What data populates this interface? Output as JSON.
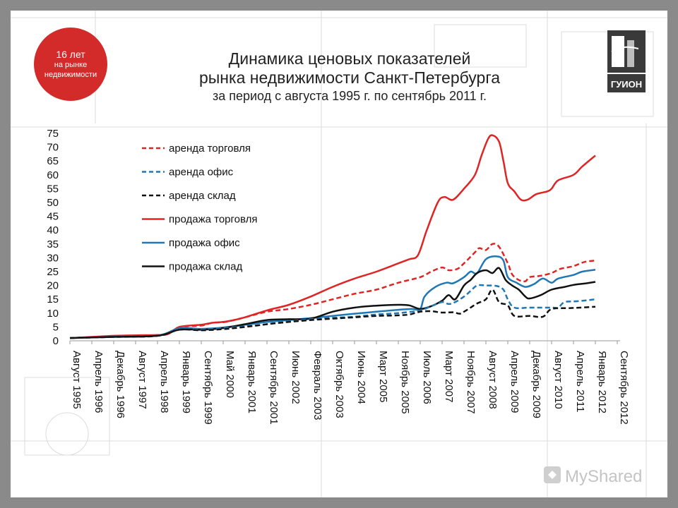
{
  "header": {
    "title_line1": "Динамика ценовых показателей",
    "title_line2": "рынка недвижимости Санкт-Петербурга",
    "title_line3": "за период с августа 1995 г.  по сентябрь 2011 г."
  },
  "badge": {
    "line1": "16 лет",
    "line2": "на рынке",
    "line3": "недвижимости"
  },
  "logo": {
    "text": "ГУИОН"
  },
  "watermark": {
    "text": "MyShared"
  },
  "colors": {
    "red": "#e02424",
    "blue": "#1f78b4",
    "black": "#111111",
    "badge": "#d32a2a"
  },
  "chart_data": {
    "type": "line",
    "ylim": [
      0,
      75
    ],
    "y_ticks": [
      0,
      5,
      10,
      15,
      20,
      25,
      30,
      35,
      40,
      45,
      50,
      55,
      60,
      65,
      70,
      75
    ],
    "x_tick_labels": [
      "Август 1995",
      "Апрель 1996",
      "Декабрь 1996",
      "Август 1997",
      "Апрель 1998",
      "Январь 1999",
      "Сентябрь 1999",
      "Май 2000",
      "Январь 2001",
      "Сентябрь 2001",
      "Июнь 2002",
      "Февраль 2003",
      "Октябрь 2003",
      "Июнь 2004",
      "Март 2005",
      "Ноябрь 2005",
      "Июль 2006",
      "Март 2007",
      "Ноябрь 2007",
      "Август 2008",
      "Апрель 2009",
      "Декабрь 2009",
      "Август 2010",
      "Апрель 2011",
      "Январь 2012",
      "Сентябрь 2012"
    ],
    "legend_position": "top-left",
    "grid": false,
    "series": [
      {
        "name": "аренда торговля",
        "color": "#e02424",
        "dash": "dashed",
        "points": [
          [
            0,
            1
          ],
          [
            2,
            1.6
          ],
          [
            3,
            1.9
          ],
          [
            4,
            2
          ],
          [
            4.5,
            2.5
          ],
          [
            5,
            5
          ],
          [
            6,
            5.5
          ],
          [
            6.5,
            6.5
          ],
          [
            7,
            6.7
          ],
          [
            7.5,
            7.5
          ],
          [
            8,
            8.5
          ],
          [
            9,
            10.5
          ],
          [
            10,
            11.5
          ],
          [
            11,
            13
          ],
          [
            12,
            15
          ],
          [
            13,
            17
          ],
          [
            14,
            18.5
          ],
          [
            15,
            21
          ],
          [
            16,
            23
          ],
          [
            16.5,
            25
          ],
          [
            17,
            26.5
          ],
          [
            17.3,
            25.5
          ],
          [
            17.7,
            26
          ],
          [
            18,
            28
          ],
          [
            18.5,
            32
          ],
          [
            18.7,
            33.5
          ],
          [
            19,
            32.8
          ],
          [
            19.3,
            35
          ],
          [
            19.6,
            34
          ],
          [
            20,
            28
          ],
          [
            20.2,
            24
          ],
          [
            20.5,
            22
          ],
          [
            20.8,
            21.5
          ],
          [
            21,
            23
          ],
          [
            21.5,
            23.5
          ],
          [
            22,
            24.5
          ],
          [
            22.4,
            26
          ],
          [
            23,
            27
          ],
          [
            23.5,
            28.5
          ],
          [
            24,
            29
          ]
        ]
      },
      {
        "name": "аренда офис",
        "color": "#1f78b4",
        "dash": "dashed",
        "points": [
          [
            0,
            1
          ],
          [
            2,
            1.4
          ],
          [
            4,
            1.8
          ],
          [
            5,
            4.5
          ],
          [
            6,
            4.2
          ],
          [
            7,
            4.6
          ],
          [
            8,
            5.2
          ],
          [
            9,
            6
          ],
          [
            10,
            7
          ],
          [
            11,
            7.8
          ],
          [
            12,
            8.3
          ],
          [
            13,
            8.7
          ],
          [
            14,
            9.5
          ],
          [
            15,
            10
          ],
          [
            16,
            11
          ],
          [
            16.5,
            12.5
          ],
          [
            17,
            14
          ],
          [
            17.3,
            13.3
          ],
          [
            17.6,
            14
          ],
          [
            18,
            16
          ],
          [
            18.3,
            18
          ],
          [
            18.6,
            20
          ],
          [
            19,
            20
          ],
          [
            19.5,
            19.8
          ],
          [
            19.8,
            18.5
          ],
          [
            20,
            15
          ],
          [
            20.3,
            12
          ],
          [
            21,
            12
          ],
          [
            22,
            12
          ],
          [
            22.3,
            12
          ],
          [
            22.6,
            14
          ],
          [
            23.2,
            14.3
          ],
          [
            24,
            15
          ]
        ]
      },
      {
        "name": "аренда склад",
        "color": "#111111",
        "dash": "dashed",
        "points": [
          [
            0,
            1
          ],
          [
            2,
            1.4
          ],
          [
            4,
            1.8
          ],
          [
            5,
            4
          ],
          [
            6,
            3.8
          ],
          [
            7,
            4.2
          ],
          [
            8,
            5
          ],
          [
            9,
            6
          ],
          [
            10,
            6.8
          ],
          [
            11,
            7.5
          ],
          [
            12,
            8
          ],
          [
            13,
            8.5
          ],
          [
            14,
            9
          ],
          [
            15,
            9.2
          ],
          [
            15.5,
            9.5
          ],
          [
            16,
            10.5
          ],
          [
            16.5,
            10.7
          ],
          [
            17,
            10.2
          ],
          [
            17.5,
            10.3
          ],
          [
            17.8,
            9.8
          ],
          [
            18,
            10.5
          ],
          [
            18.3,
            12
          ],
          [
            18.6,
            13.5
          ],
          [
            19,
            15
          ],
          [
            19.3,
            18.5
          ],
          [
            19.6,
            14
          ],
          [
            20,
            12.8
          ],
          [
            20.3,
            9
          ],
          [
            21,
            9
          ],
          [
            21.6,
            8.7
          ],
          [
            22,
            11.5
          ],
          [
            22.8,
            11.8
          ],
          [
            23.3,
            12
          ],
          [
            24,
            12.3
          ]
        ]
      },
      {
        "name": "продажа торговля",
        "color": "#e02424",
        "dash": "solid",
        "points": [
          [
            0,
            1
          ],
          [
            2,
            1.8
          ],
          [
            3,
            2
          ],
          [
            4,
            2.1
          ],
          [
            4.5,
            2.5
          ],
          [
            5,
            5
          ],
          [
            6,
            5.8
          ],
          [
            6.5,
            6.5
          ],
          [
            7,
            6.8
          ],
          [
            7.5,
            7.5
          ],
          [
            8,
            8.5
          ],
          [
            9,
            11
          ],
          [
            10,
            13
          ],
          [
            11,
            16
          ],
          [
            12,
            19.5
          ],
          [
            13,
            22.5
          ],
          [
            14,
            25
          ],
          [
            15,
            28
          ],
          [
            15.5,
            29.5
          ],
          [
            15.9,
            31
          ],
          [
            16.3,
            40
          ],
          [
            16.8,
            50
          ],
          [
            17.1,
            52
          ],
          [
            17.5,
            51
          ],
          [
            18,
            55
          ],
          [
            18.5,
            60
          ],
          [
            18.8,
            67
          ],
          [
            19.1,
            73
          ],
          [
            19.3,
            74.3
          ],
          [
            19.6,
            72
          ],
          [
            19.8,
            65
          ],
          [
            20,
            57
          ],
          [
            20.3,
            54
          ],
          [
            20.6,
            51
          ],
          [
            20.9,
            51
          ],
          [
            21.3,
            53
          ],
          [
            21.8,
            54
          ],
          [
            22,
            55
          ],
          [
            22.3,
            58
          ],
          [
            23,
            60
          ],
          [
            23.4,
            63
          ],
          [
            24,
            67
          ]
        ]
      },
      {
        "name": "продажа офис",
        "color": "#1f78b4",
        "dash": "solid",
        "points": [
          [
            0,
            1
          ],
          [
            2,
            1.5
          ],
          [
            4,
            1.9
          ],
          [
            5,
            4.5
          ],
          [
            6,
            4.3
          ],
          [
            7,
            4.8
          ],
          [
            8,
            5.8
          ],
          [
            9,
            6.8
          ],
          [
            10,
            7.5
          ],
          [
            11,
            8.2
          ],
          [
            12,
            9
          ],
          [
            13,
            9.8
          ],
          [
            14,
            10.5
          ],
          [
            15,
            11.2
          ],
          [
            15.6,
            11.5
          ],
          [
            16,
            11.5
          ],
          [
            16.2,
            16
          ],
          [
            16.7,
            19.5
          ],
          [
            17.2,
            21
          ],
          [
            17.5,
            20.8
          ],
          [
            18,
            23
          ],
          [
            18.3,
            25
          ],
          [
            18.6,
            24.5
          ],
          [
            19,
            29.5
          ],
          [
            19.5,
            30.5
          ],
          [
            19.8,
            29
          ],
          [
            20,
            23
          ],
          [
            20.4,
            21
          ],
          [
            20.8,
            19.5
          ],
          [
            21.2,
            20.5
          ],
          [
            21.6,
            22.5
          ],
          [
            22,
            21
          ],
          [
            22.3,
            22.5
          ],
          [
            23,
            23.8
          ],
          [
            23.4,
            25
          ],
          [
            24,
            25.7
          ]
        ]
      },
      {
        "name": "продажа склад",
        "color": "#111111",
        "dash": "solid",
        "points": [
          [
            0,
            1
          ],
          [
            2,
            1.4
          ],
          [
            4,
            1.8
          ],
          [
            5,
            4
          ],
          [
            6,
            4
          ],
          [
            7,
            4.6
          ],
          [
            8,
            6
          ],
          [
            9,
            7.5
          ],
          [
            10,
            7.8
          ],
          [
            11,
            8
          ],
          [
            12,
            10.5
          ],
          [
            13,
            12
          ],
          [
            14,
            12.7
          ],
          [
            15,
            13
          ],
          [
            15.5,
            12.8
          ],
          [
            16,
            11.5
          ],
          [
            16.5,
            12.5
          ],
          [
            17,
            14.5
          ],
          [
            17.3,
            16.5
          ],
          [
            17.6,
            15
          ],
          [
            18,
            20
          ],
          [
            18.3,
            22
          ],
          [
            18.6,
            24.5
          ],
          [
            19,
            25.5
          ],
          [
            19.3,
            24.5
          ],
          [
            19.6,
            26.3
          ],
          [
            19.9,
            22
          ],
          [
            20.2,
            20
          ],
          [
            20.5,
            18.5
          ],
          [
            20.8,
            16
          ],
          [
            21,
            15.3
          ],
          [
            21.5,
            16.5
          ],
          [
            22,
            18.5
          ],
          [
            22.6,
            19.5
          ],
          [
            23,
            20.2
          ],
          [
            23.6,
            20.8
          ],
          [
            24,
            21.3
          ]
        ]
      }
    ]
  }
}
